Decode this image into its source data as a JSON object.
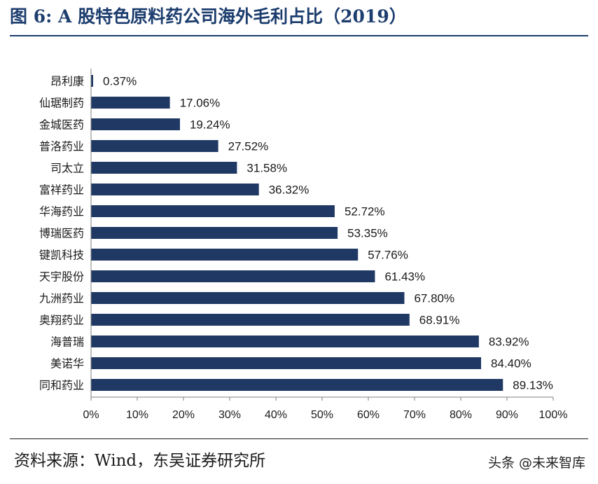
{
  "figure": {
    "title": "图 6:  A 股特色原料药公司海外毛利占比（2019）",
    "source": "资料来源：Wind，东吴证券研究所",
    "watermark": "头条 @未来智库"
  },
  "colors": {
    "bar": "#1f3864",
    "title": "#1c3d6e",
    "axis": "#7f7f7f"
  },
  "chart_data": {
    "type": "bar",
    "orientation": "horizontal",
    "categories": [
      "昂利康",
      "仙琚制药",
      "金城医药",
      "普洛药业",
      "司太立",
      "富祥药业",
      "华海药业",
      "博瑞医药",
      "键凯科技",
      "天宇股份",
      "九洲药业",
      "奥翔药业",
      "海普瑞",
      "美诺华",
      "同和药业"
    ],
    "values": [
      0.37,
      17.06,
      19.24,
      27.52,
      31.58,
      36.32,
      52.72,
      53.35,
      57.76,
      61.43,
      67.8,
      68.91,
      83.92,
      84.4,
      89.13
    ],
    "value_labels": [
      "0.37%",
      "17.06%",
      "19.24%",
      "27.52%",
      "31.58%",
      "36.32%",
      "52.72%",
      "53.35%",
      "57.76%",
      "61.43%",
      "67.80%",
      "68.91%",
      "83.92%",
      "84.40%",
      "89.13%"
    ],
    "x_ticks": [
      "0%",
      "10%",
      "20%",
      "30%",
      "40%",
      "50%",
      "60%",
      "70%",
      "80%",
      "90%",
      "100%"
    ],
    "xlim": [
      0,
      100
    ],
    "grid": false,
    "legend": "none"
  }
}
